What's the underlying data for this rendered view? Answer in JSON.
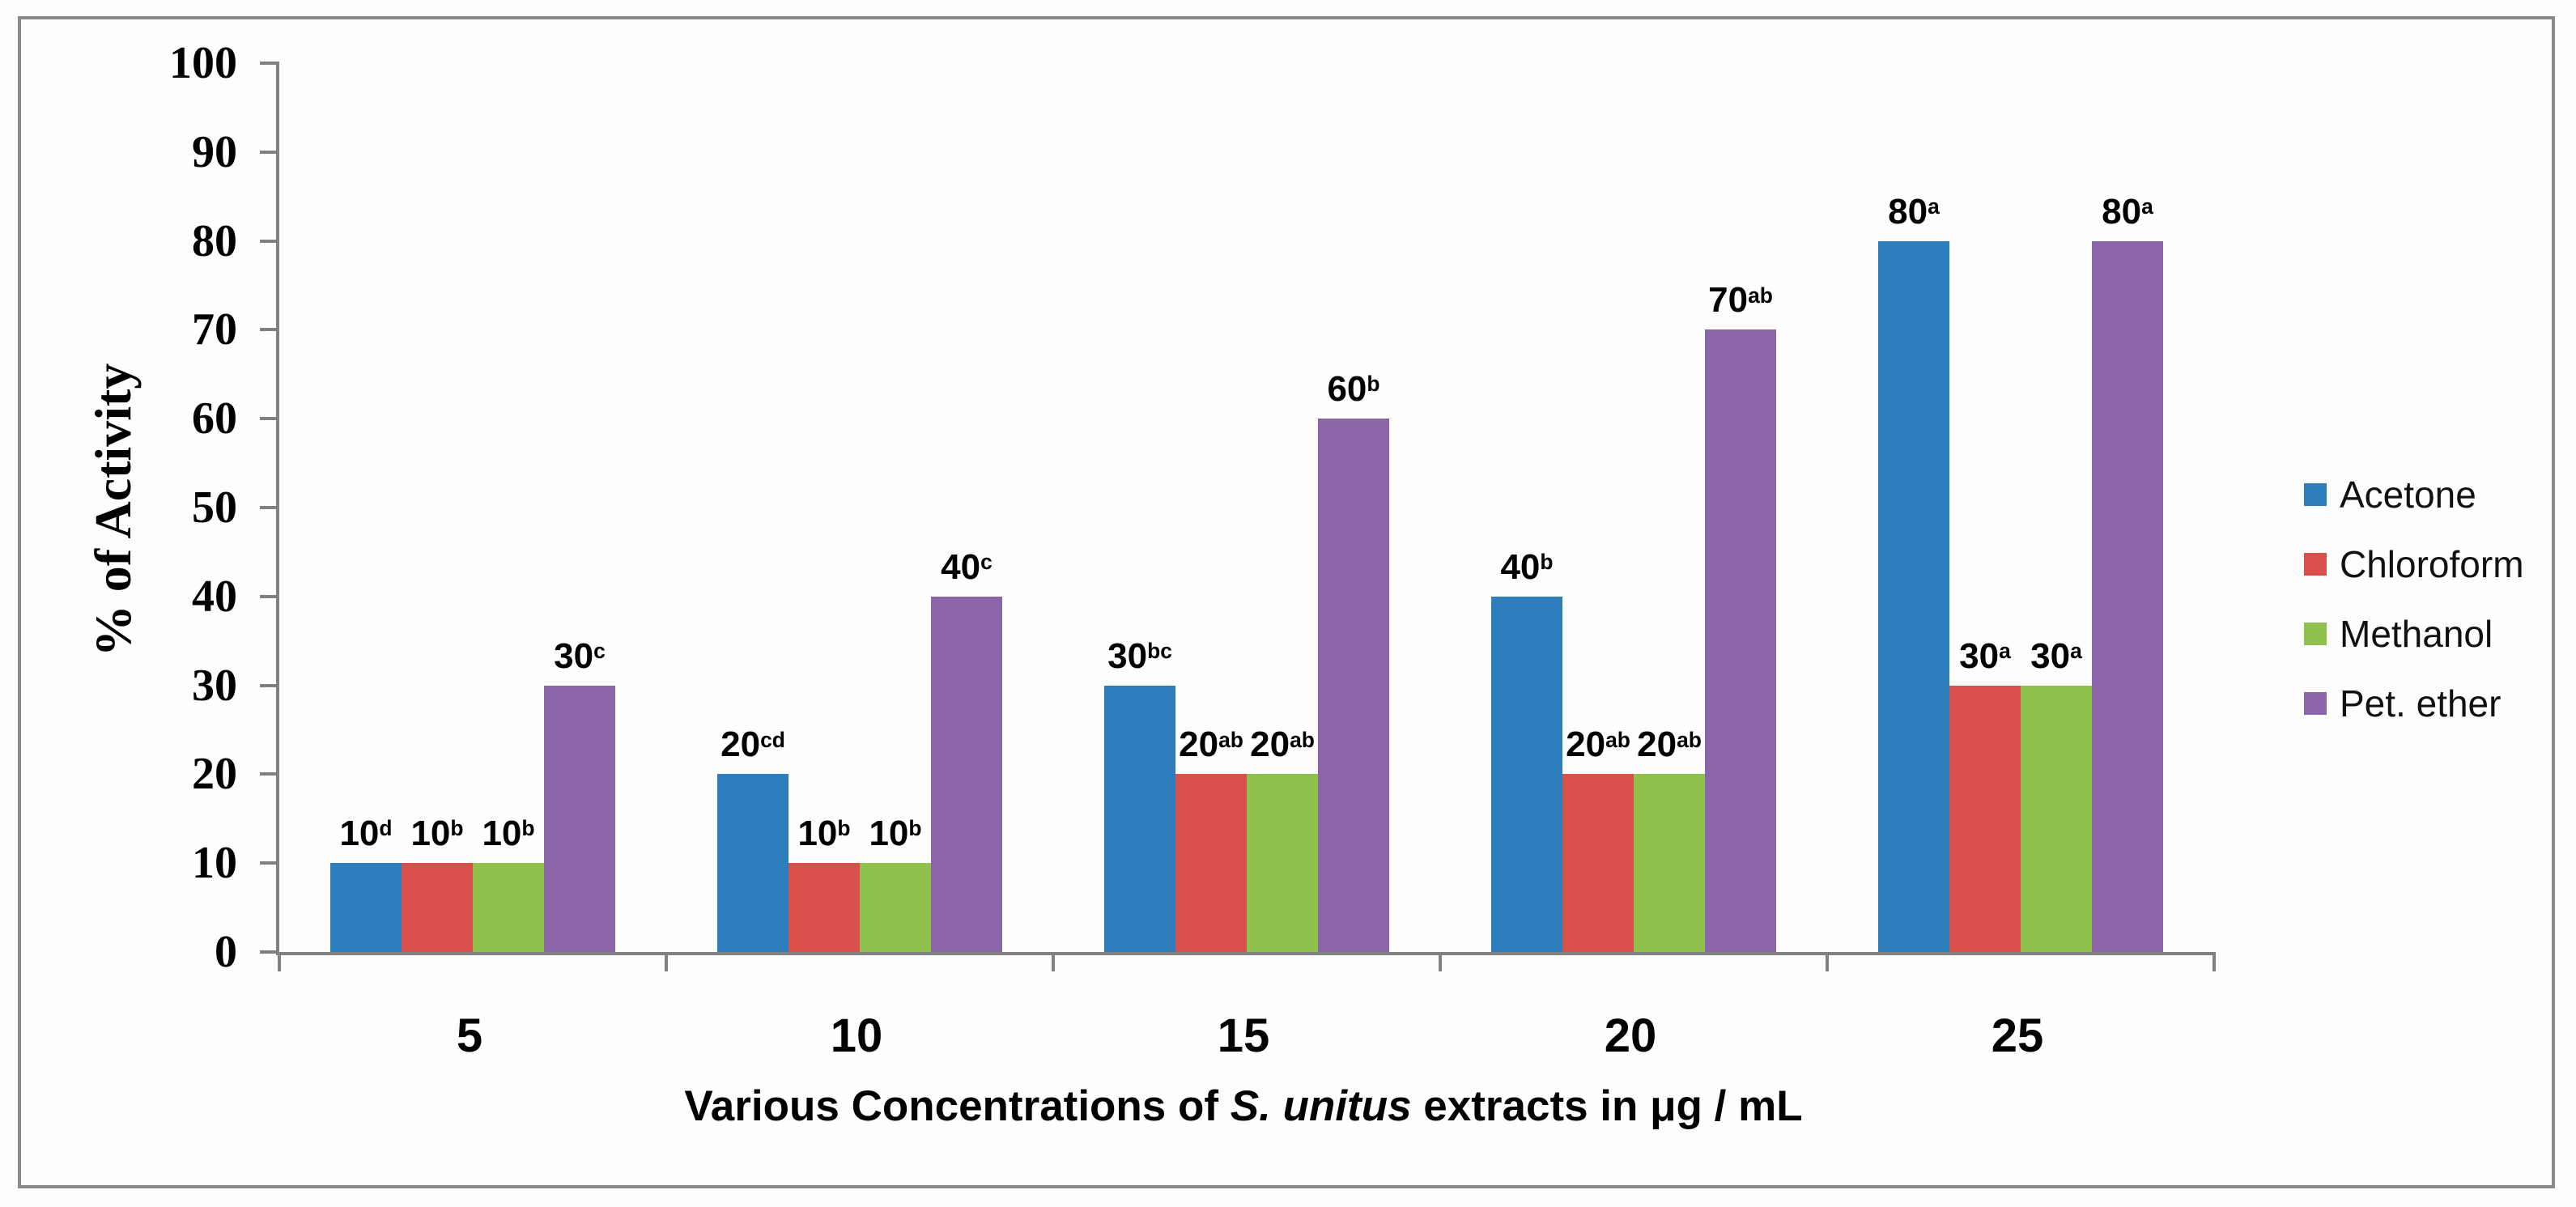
{
  "figure": {
    "background": "#ffffff",
    "border_color": "#8a8a8a",
    "axis_color": "#808080",
    "text_color": "#000000"
  },
  "chart_data": {
    "type": "bar",
    "title": "",
    "ylabel": "% of Activity",
    "xlabel": "Various Concentrations of S. unitus extracts in μg / mL",
    "xlabel_parts": {
      "prefix": "Various Concentrations of ",
      "italic": "S. unitus",
      "suffix": " extracts in μg / mL"
    },
    "categories": [
      "5",
      "10",
      "15",
      "20",
      "25"
    ],
    "ylim": [
      0,
      100
    ],
    "ytick_interval": 10,
    "ytick_labels": [
      "0",
      "10",
      "20",
      "30",
      "40",
      "50",
      "60",
      "70",
      "80",
      "90",
      "100"
    ],
    "grid": false,
    "legend_position": "right",
    "series": [
      {
        "name": "Acetone",
        "color": "#2E7EBD",
        "values": [
          10,
          20,
          30,
          40,
          80
        ],
        "data_labels": [
          {
            "value": "10",
            "sup": "d"
          },
          {
            "value": "20",
            "sup": "cd"
          },
          {
            "value": "30",
            "sup": "bc"
          },
          {
            "value": "40",
            "sup": "b"
          },
          {
            "value": "80",
            "sup": "a"
          }
        ]
      },
      {
        "name": "Chloroform",
        "color": "#D94F4B",
        "values": [
          10,
          10,
          20,
          20,
          30
        ],
        "data_labels": [
          {
            "value": "10",
            "sup": "b"
          },
          {
            "value": "10",
            "sup": "b"
          },
          {
            "value": "20",
            "sup": "ab"
          },
          {
            "value": "20",
            "sup": "ab"
          },
          {
            "value": "30",
            "sup": "a"
          }
        ]
      },
      {
        "name": "Methanol",
        "color": "#8FC24D",
        "values": [
          10,
          10,
          20,
          20,
          30
        ],
        "data_labels": [
          {
            "value": "10",
            "sup": "b"
          },
          {
            "value": "10",
            "sup": "b"
          },
          {
            "value": "20",
            "sup": "ab"
          },
          {
            "value": "20",
            "sup": "ab"
          },
          {
            "value": "30",
            "sup": "a"
          }
        ]
      },
      {
        "name": "Pet. ether",
        "color": "#8C64A8",
        "values": [
          30,
          40,
          60,
          70,
          80
        ],
        "data_labels": [
          {
            "value": "30",
            "sup": "c"
          },
          {
            "value": "40",
            "sup": "c"
          },
          {
            "value": "60",
            "sup": "b"
          },
          {
            "value": "70",
            "sup": "ab"
          },
          {
            "value": "80",
            "sup": "a"
          }
        ]
      }
    ]
  }
}
